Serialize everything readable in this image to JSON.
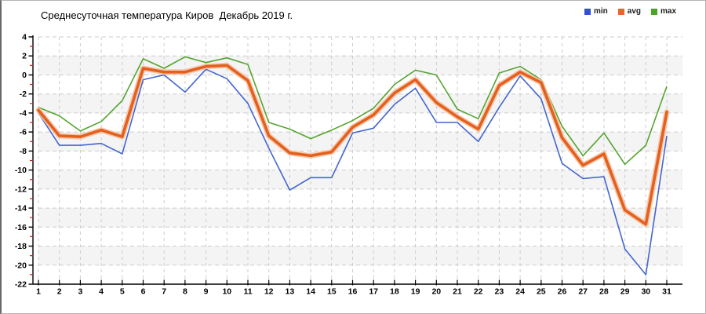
{
  "window": {
    "background": "#ffffff",
    "border_color": "#b4b4b4"
  },
  "chart_data": {
    "type": "line",
    "title": "Среднесуточная температура Киров  Декабрь 2019 г.",
    "xlabel": "",
    "ylabel": "",
    "x_days": [
      1,
      2,
      3,
      4,
      5,
      6,
      7,
      8,
      9,
      10,
      11,
      12,
      13,
      14,
      15,
      16,
      17,
      18,
      19,
      20,
      21,
      22,
      23,
      24,
      25,
      26,
      27,
      28,
      29,
      30,
      31
    ],
    "ylim": [
      -22,
      4
    ],
    "y_tick_step": 2,
    "grid": true,
    "band_color": "#f4f4f4",
    "grid_color": "#cccccc",
    "axis_color": "#000000",
    "minor_tick_color": "#cc2222",
    "legend_position": "top-right",
    "legend": [
      {
        "label": "min",
        "color": "#3350d2"
      },
      {
        "label": "avg",
        "color": "#e8662b"
      },
      {
        "label": "max",
        "color": "#4ca427"
      }
    ],
    "series": [
      {
        "name": "min",
        "color": "#4466cf",
        "values": [
          -4.0,
          -7.4,
          -7.4,
          -7.2,
          -8.3,
          -0.5,
          0.0,
          -1.8,
          0.6,
          -0.4,
          -3.0,
          -7.7,
          -12.1,
          -10.8,
          -10.8,
          -6.1,
          -5.6,
          -3.1,
          -1.4,
          -5.0,
          -5.0,
          -7.0,
          -3.4,
          -0.1,
          -2.5,
          -9.3,
          -10.9,
          -10.7,
          -18.3,
          -21.0,
          -6.4
        ]
      },
      {
        "name": "avg",
        "color": "#e4601f",
        "halo_color": "#f6c09e",
        "values": [
          -3.7,
          -6.4,
          -6.5,
          -5.8,
          -6.5,
          0.7,
          0.3,
          0.3,
          0.9,
          1.0,
          -0.6,
          -6.4,
          -8.2,
          -8.5,
          -8.1,
          -5.5,
          -4.2,
          -1.9,
          -0.5,
          -2.9,
          -4.4,
          -5.7,
          -1.1,
          0.3,
          -0.8,
          -6.6,
          -9.5,
          -8.3,
          -14.2,
          -15.7,
          -3.9
        ]
      },
      {
        "name": "max",
        "color": "#54a42f",
        "values": [
          -3.4,
          -4.3,
          -5.9,
          -4.9,
          -2.7,
          1.7,
          0.7,
          1.9,
          1.3,
          1.8,
          1.1,
          -5.0,
          -5.7,
          -6.7,
          -5.8,
          -4.8,
          -3.5,
          -1.0,
          0.5,
          0.0,
          -3.6,
          -4.6,
          0.2,
          0.9,
          -0.5,
          -5.4,
          -8.5,
          -6.1,
          -9.4,
          -7.4,
          -1.2
        ]
      }
    ]
  }
}
